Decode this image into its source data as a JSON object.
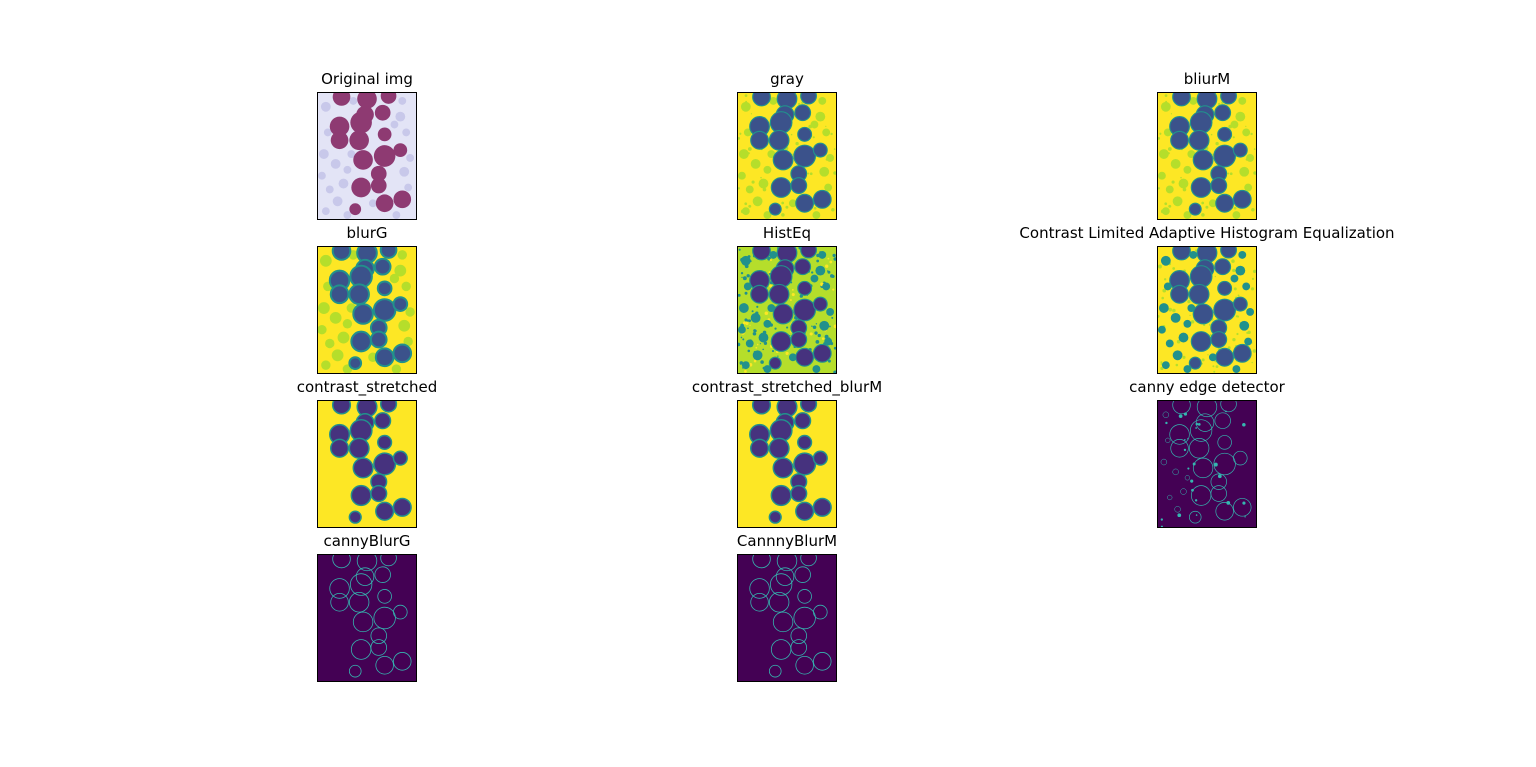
{
  "figure": {
    "panels": [
      {
        "id": "original",
        "title": "Original img",
        "style": "original"
      },
      {
        "id": "gray",
        "title": "gray",
        "style": "gray"
      },
      {
        "id": "bliurm",
        "title": "bliurM",
        "style": "gray"
      },
      {
        "id": "blurg",
        "title": "blurG",
        "style": "blur"
      },
      {
        "id": "histeq",
        "title": "HistEq",
        "style": "histeq"
      },
      {
        "id": "clahe",
        "title": "Contrast Limited Adaptive Histogram Equalization",
        "style": "clahe"
      },
      {
        "id": "contrast-stretched",
        "title": "contrast_stretched",
        "style": "stretched"
      },
      {
        "id": "contrast-stretched-blurm",
        "title": "contrast_stretched_blurM",
        "style": "stretched"
      },
      {
        "id": "canny-edge",
        "title": "canny edge detector",
        "style": "canny-noisy"
      },
      {
        "id": "canny-blurg",
        "title": "cannyBlurG",
        "style": "canny"
      },
      {
        "id": "cannny-blurm",
        "title": "CannnyBlurM",
        "style": "canny"
      }
    ],
    "colors": {
      "viridis_yellow": "#fde725",
      "viridis_green": "#b5de2b",
      "viridis_teal": "#21918c",
      "viridis_blue": "#3b528b",
      "viridis_indigo": "#46327e",
      "viridis_purple": "#440154",
      "edge_cyan": "#35b7b0",
      "original_bg": "#e3e4f6",
      "original_cell": "#8e3a72",
      "original_faint": "#c8c8ea"
    }
  }
}
